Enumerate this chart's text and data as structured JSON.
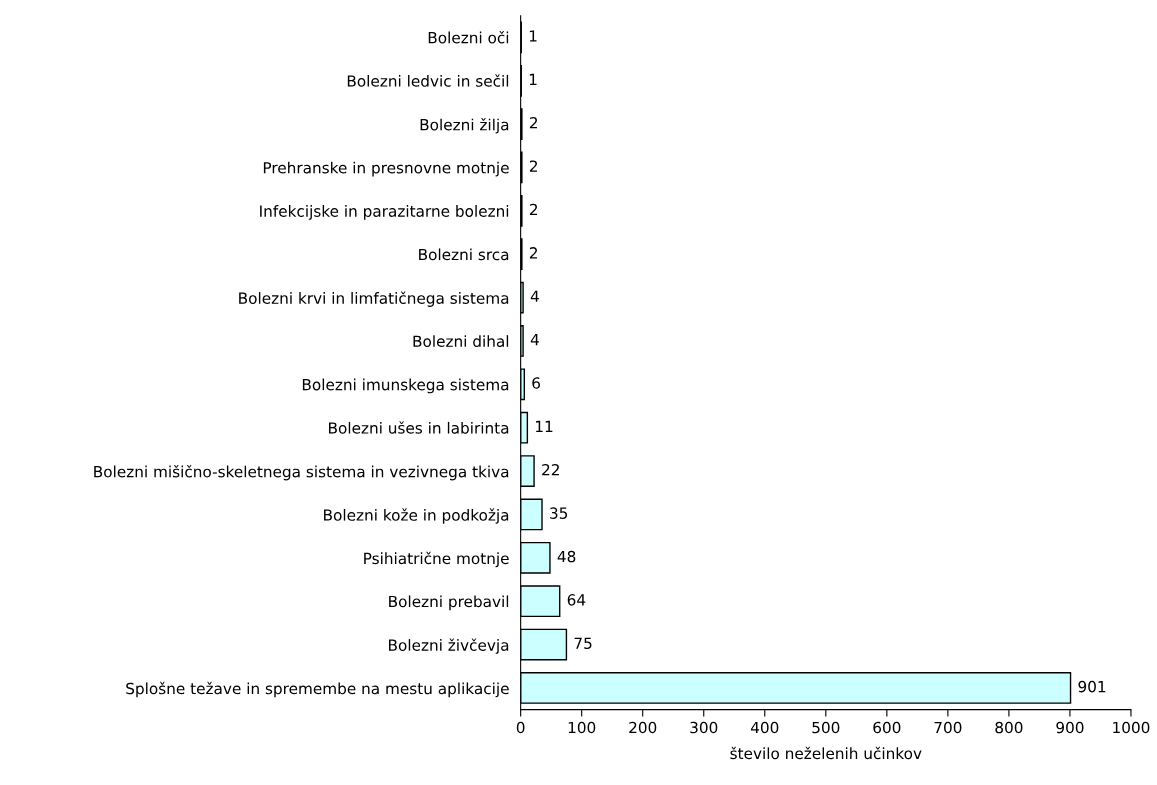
{
  "chart_data": {
    "type": "bar",
    "orientation": "horizontal",
    "categories": [
      "Bolezni oči",
      "Bolezni ledvic in sečil",
      "Bolezni žilja",
      "Prehranske in presnovne motnje",
      "Infekcijske in parazitarne bolezni",
      "Bolezni srca",
      "Bolezni krvi in limfatičnega sistema",
      "Bolezni dihal",
      "Bolezni imunskega sistema",
      "Bolezni ušes in labirinta",
      "Bolezni mišično-skeletnega sistema in vezivnega tkiva",
      "Bolezni kože in podkožja",
      "Psihiatrične motnje",
      "Bolezni prebavil",
      "Bolezni živčevja",
      "Splošne težave in spremembe na mestu aplikacije"
    ],
    "values": [
      1,
      1,
      2,
      2,
      2,
      2,
      4,
      4,
      6,
      11,
      22,
      35,
      48,
      64,
      75,
      901
    ],
    "color": "#ccffff",
    "xlim": [
      0,
      1000
    ],
    "xticks": [
      0,
      100,
      200,
      300,
      400,
      500,
      600,
      700,
      800,
      900,
      1000
    ],
    "xlabel": "število neželenih učinkov",
    "data_labels": true,
    "grid": false,
    "legend": false
  }
}
